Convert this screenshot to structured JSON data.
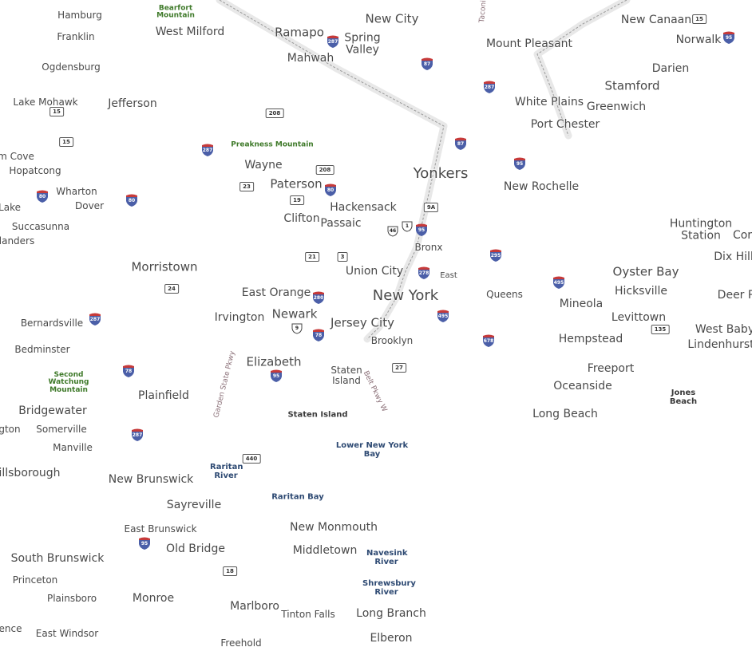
{
  "map": {
    "cities": [
      {
        "name": "Hamburg",
        "size": "sm"
      },
      {
        "name": "Franklin",
        "size": "sm"
      },
      {
        "name": "West Milford",
        "size": "md"
      },
      {
        "name": "Ramapo",
        "size": "lg"
      },
      {
        "name": "Spring Valley",
        "size": "md"
      },
      {
        "name": "Mahwah",
        "size": "md"
      },
      {
        "name": "New City",
        "size": "lg"
      },
      {
        "name": "Mount Pleasant",
        "size": "md"
      },
      {
        "name": "New Canaan",
        "size": "md"
      },
      {
        "name": "Norwalk",
        "size": "md"
      },
      {
        "name": "Darien",
        "size": "md"
      },
      {
        "name": "Stamford",
        "size": "lg"
      },
      {
        "name": "White Plains",
        "size": "md"
      },
      {
        "name": "Greenwich",
        "size": "md"
      },
      {
        "name": "Port Chester",
        "size": "md"
      },
      {
        "name": "Ogdensburg",
        "size": "sm"
      },
      {
        "name": "Lake Mohawk",
        "size": "sm"
      },
      {
        "name": "Jefferson",
        "size": "md"
      },
      {
        "name": "m Cove",
        "size": "sm"
      },
      {
        "name": "Hopatcong",
        "size": "sm"
      },
      {
        "name": "Wharton",
        "size": "sm"
      },
      {
        "name": "Dover",
        "size": "sm"
      },
      {
        "name": "Lake",
        "size": "sm"
      },
      {
        "name": "Succasunna",
        "size": "sm"
      },
      {
        "name": "landers",
        "size": "sm"
      },
      {
        "name": "Wayne",
        "size": "md"
      },
      {
        "name": "Paterson",
        "size": "lg"
      },
      {
        "name": "Hackensack",
        "size": "md"
      },
      {
        "name": "Clifton",
        "size": "md"
      },
      {
        "name": "Passaic",
        "size": "md"
      },
      {
        "name": "Yonkers",
        "size": "xl"
      },
      {
        "name": "New Rochelle",
        "size": "md"
      },
      {
        "name": "Bronx",
        "size": "sm"
      },
      {
        "name": "Huntington Station",
        "size": "md"
      },
      {
        "name": "Cor",
        "size": "md"
      },
      {
        "name": "Dix Hill",
        "size": "md"
      },
      {
        "name": "Morristown",
        "size": "lg"
      },
      {
        "name": "Union City",
        "size": "md"
      },
      {
        "name": "East",
        "size": "xs"
      },
      {
        "name": "Oyster Bay",
        "size": "lg"
      },
      {
        "name": "Hicksville",
        "size": "md"
      },
      {
        "name": "Deer P",
        "size": "md"
      },
      {
        "name": "East Orange",
        "size": "md"
      },
      {
        "name": "New York",
        "size": "xl"
      },
      {
        "name": "Queens",
        "size": "sm"
      },
      {
        "name": "Mineola",
        "size": "md"
      },
      {
        "name": "Levittown",
        "size": "md"
      },
      {
        "name": "West Baby",
        "size": "md"
      },
      {
        "name": "Lindenhurst",
        "size": "md"
      },
      {
        "name": "Bernardsville",
        "size": "sm"
      },
      {
        "name": "Irvington",
        "size": "md"
      },
      {
        "name": "Newark",
        "size": "lg"
      },
      {
        "name": "Jersey City",
        "size": "lg"
      },
      {
        "name": "Brooklyn",
        "size": "sm"
      },
      {
        "name": "Hempstead",
        "size": "md"
      },
      {
        "name": "Bedminster",
        "size": "sm"
      },
      {
        "name": "Elizabeth",
        "size": "lg"
      },
      {
        "name": "Staten Island",
        "size": "sm"
      },
      {
        "name": "Freeport",
        "size": "md"
      },
      {
        "name": "Oceanside",
        "size": "md"
      },
      {
        "name": "Plainfield",
        "size": "md"
      },
      {
        "name": "Bridgewater",
        "size": "md"
      },
      {
        "name": "gton",
        "size": "sm"
      },
      {
        "name": "Somerville",
        "size": "sm"
      },
      {
        "name": "Manville",
        "size": "sm"
      },
      {
        "name": "Long Beach",
        "size": "md"
      },
      {
        "name": "illsborough",
        "size": "md"
      },
      {
        "name": "New Brunswick",
        "size": "md"
      },
      {
        "name": "Sayreville",
        "size": "md"
      },
      {
        "name": "East Brunswick",
        "size": "sm"
      },
      {
        "name": "Old Bridge",
        "size": "md"
      },
      {
        "name": "New Monmouth",
        "size": "md"
      },
      {
        "name": "Middletown",
        "size": "md"
      },
      {
        "name": "South Brunswick",
        "size": "md"
      },
      {
        "name": "Princeton",
        "size": "sm"
      },
      {
        "name": "Plainsboro",
        "size": "sm"
      },
      {
        "name": "Monroe",
        "size": "md"
      },
      {
        "name": "Marlboro",
        "size": "md"
      },
      {
        "name": "Tinton Falls",
        "size": "sm"
      },
      {
        "name": "Long Branch",
        "size": "md"
      },
      {
        "name": "ence",
        "size": "sm"
      },
      {
        "name": "East Windsor",
        "size": "sm"
      },
      {
        "name": "Freehold",
        "size": "sm"
      },
      {
        "name": "Elberon",
        "size": "md"
      }
    ],
    "parks": [
      "Bearfort Mountain",
      "Preakness Mountain",
      "Second Watchung Mountain"
    ],
    "water": [
      "Lower New York Bay",
      "Raritan River",
      "Raritan Bay",
      "Navesink River",
      "Shrewsbury River",
      "Staten Island",
      "Jones Beach"
    ],
    "road_names": [
      "Garden State Pkwy",
      "Belt Pkwy W",
      "Taconic"
    ],
    "interstate_shields": [
      "287",
      "87",
      "95",
      "287",
      "87",
      "287",
      "80",
      "80",
      "95",
      "80",
      "295",
      "278",
      "280",
      "495",
      "495",
      "287",
      "78",
      "678",
      "78",
      "95",
      "287",
      "95"
    ],
    "state_shields": [
      "15",
      "15",
      "208",
      "208",
      "23",
      "19",
      "9A",
      "21",
      "3",
      "24",
      "135",
      "27",
      "440",
      "18"
    ],
    "us_shields": [
      "1",
      "46",
      "9"
    ]
  }
}
